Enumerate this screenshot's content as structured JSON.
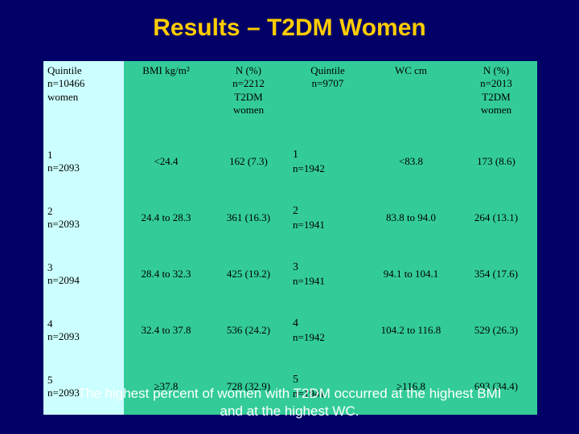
{
  "title": "Results – T2DM Women",
  "table": {
    "headers": {
      "quintile_bmi": [
        "Quintile",
        "n=10466",
        "women"
      ],
      "bmi": "BMI kg/m²",
      "n_bmi": [
        "N (%)",
        "n=2212",
        "T2DM",
        "women"
      ],
      "quintile_wc": [
        "Quintile",
        "n=9707"
      ],
      "wc": "WC cm",
      "n_wc": [
        "N (%)",
        "n=2013",
        "T2DM",
        "women"
      ]
    },
    "rows": [
      {
        "q_bmi": "1",
        "n_bmi_q": "n=2093",
        "bmi": "<24.4",
        "n_bmi": "162 (7.3)",
        "q_wc": "1",
        "n_wc_q": "n=1942",
        "wc": "<83.8",
        "n_wc": "173 (8.6)"
      },
      {
        "q_bmi": "2",
        "n_bmi_q": "n=2093",
        "bmi": "24.4 to 28.3",
        "n_bmi": "361 (16.3)",
        "q_wc": "2",
        "n_wc_q": "n=1941",
        "wc": "83.8 to 94.0",
        "n_wc": "264 (13.1)"
      },
      {
        "q_bmi": "3",
        "n_bmi_q": "n=2094",
        "bmi": "28.4 to 32.3",
        "n_bmi": "425 (19.2)",
        "q_wc": "3",
        "n_wc_q": "n=1941",
        "wc": "94.1 to 104.1",
        "n_wc": "354 (17.6)"
      },
      {
        "q_bmi": "4",
        "n_bmi_q": "n=2093",
        "bmi": "32.4 to 37.8",
        "n_bmi": "536 (24.2)",
        "q_wc": "4",
        "n_wc_q": "n=1942",
        "wc": "104.2 to 116.8",
        "n_wc": "529 (26.3)"
      },
      {
        "q_bmi": "5",
        "n_bmi_q": "n=2093",
        "bmi": "≥37.8",
        "n_bmi": "728 (32.9)",
        "q_wc": "5",
        "n_wc_q": "n=1941",
        "wc": "≥116.8",
        "n_wc": "693 (34.4)"
      }
    ]
  },
  "footer": [
    "The highest percent of women with T2DM occurred at the highest BMI",
    "and at the highest WC."
  ],
  "colors": {
    "background": "#000066",
    "title": "#ffcc00",
    "first_column": "#ccffff",
    "cells": "#33cc99",
    "footer_text": "#ffffff"
  }
}
